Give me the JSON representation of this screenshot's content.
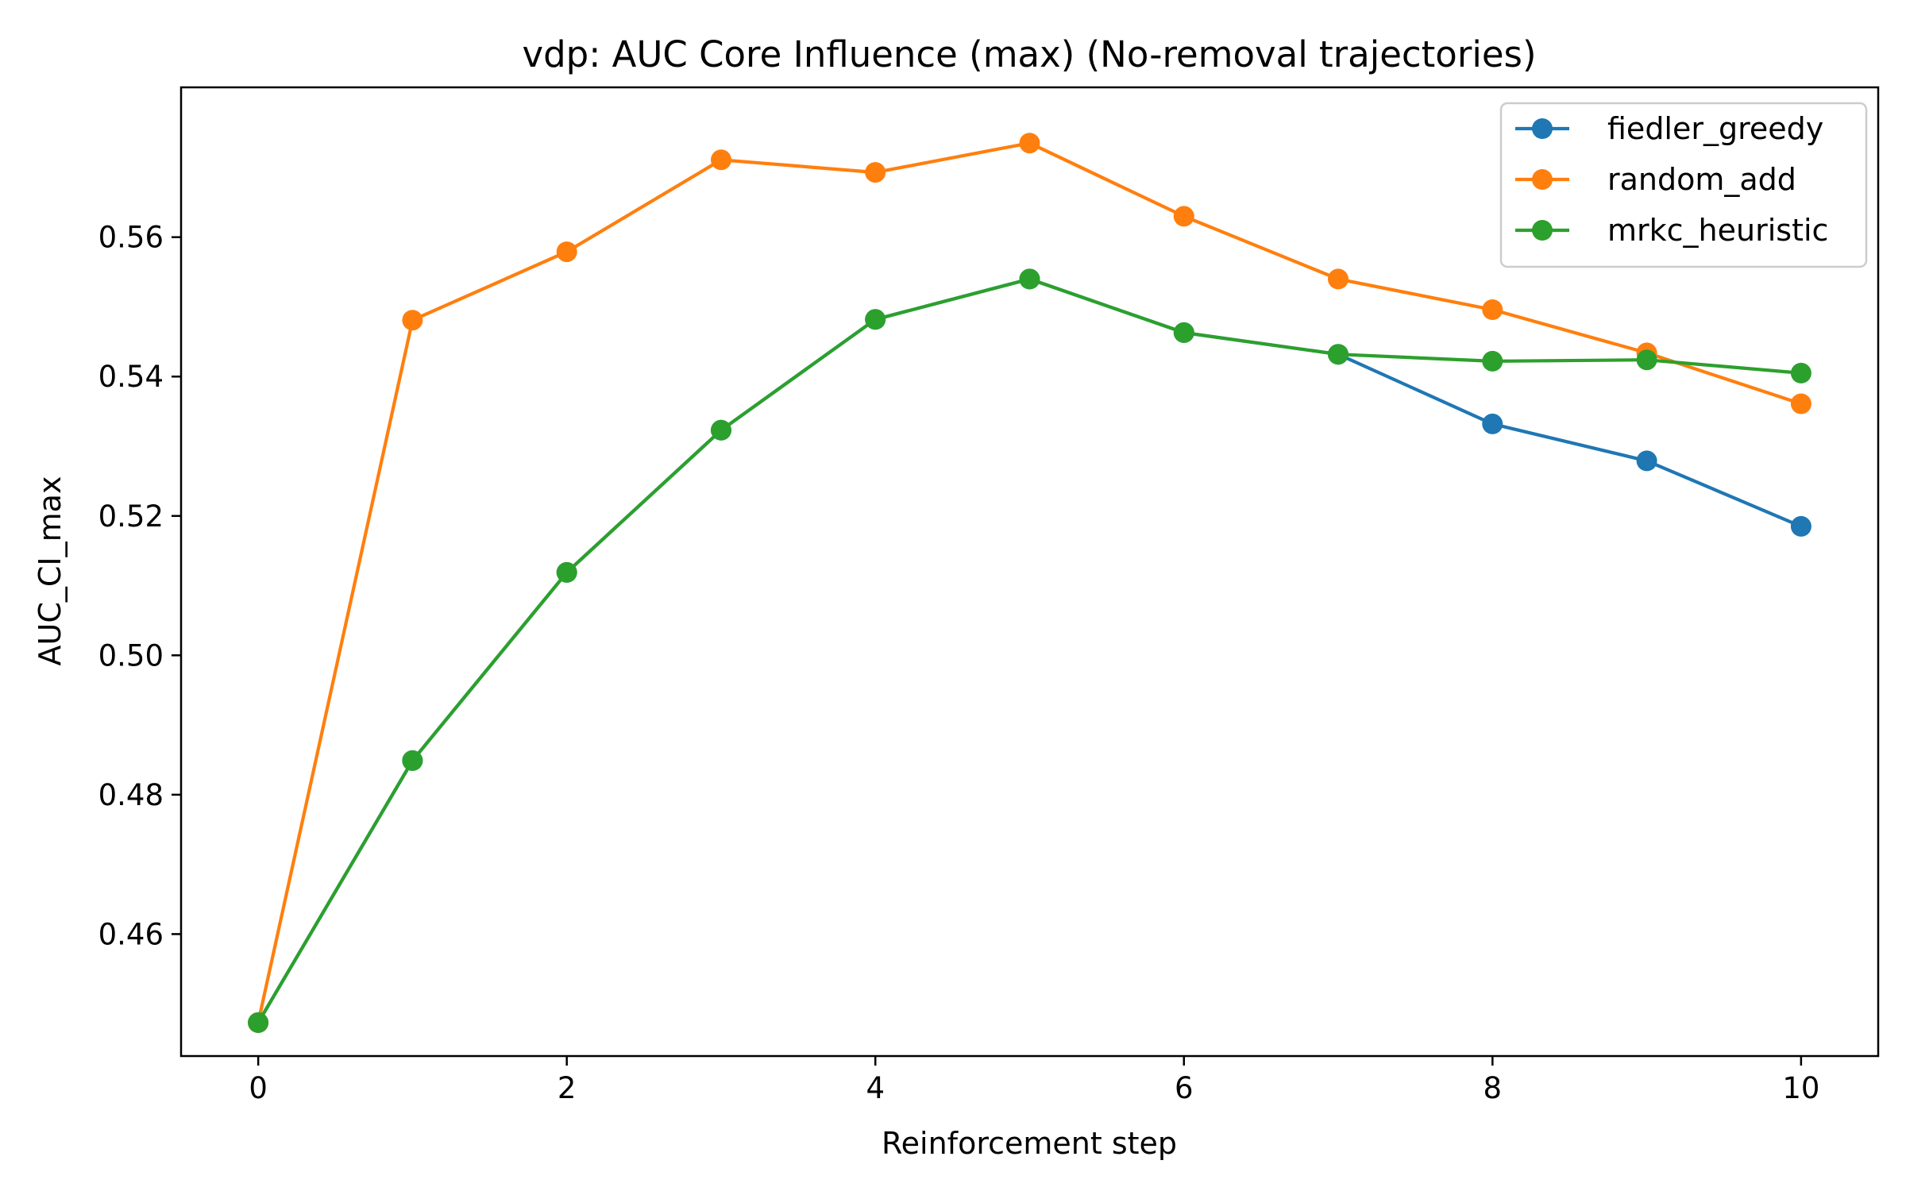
{
  "chart_data": {
    "type": "line",
    "title": "vdp: AUC Core Influence (max) (No-removal trajectories)",
    "xlabel": "Reinforcement step",
    "ylabel": "AUC_CI_max",
    "x": [
      0,
      1,
      2,
      3,
      4,
      5,
      6,
      7,
      8,
      9,
      10
    ],
    "xlim": [
      -0.5,
      10.5
    ],
    "ylim": [
      0.4425,
      0.5815
    ],
    "xticks": [
      0,
      2,
      4,
      6,
      8,
      10
    ],
    "xtick_labels": [
      "0",
      "2",
      "4",
      "6",
      "8",
      "10"
    ],
    "yticks": [
      0.46,
      0.48,
      0.5,
      0.52,
      0.54,
      0.56
    ],
    "ytick_labels": [
      "0.46",
      "0.48",
      "0.50",
      "0.52",
      "0.54",
      "0.56"
    ],
    "grid": false,
    "legend_position": "top-right",
    "series": [
      {
        "name": "fiedler_greedy",
        "color": "#1f77b4",
        "values": [
          0.4473,
          0.4849,
          0.5119,
          0.5323,
          0.5482,
          0.554,
          0.5463,
          0.5432,
          0.5332,
          0.5279,
          0.5185
        ]
      },
      {
        "name": "random_add",
        "color": "#ff7f0e",
        "values": [
          0.4473,
          0.5481,
          0.5579,
          0.5711,
          0.5693,
          0.5735,
          0.563,
          0.554,
          0.5496,
          0.5434,
          0.5361
        ]
      },
      {
        "name": "mrkc_heuristic",
        "color": "#2ca02c",
        "values": [
          0.4473,
          0.4849,
          0.5119,
          0.5323,
          0.5482,
          0.554,
          0.5463,
          0.5432,
          0.5422,
          0.5424,
          0.5405
        ]
      }
    ]
  }
}
